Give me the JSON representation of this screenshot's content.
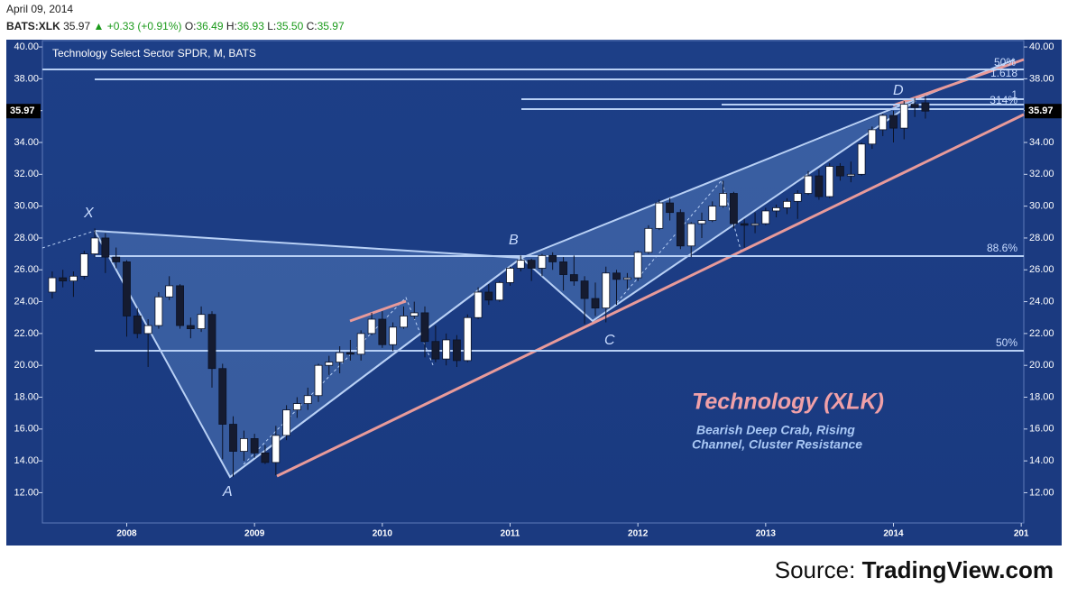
{
  "header": {
    "date": "April 09, 2014",
    "symbol": "BATS:XLK",
    "last": "35.97",
    "change": "+0.33 (+0.91%)",
    "ohlc": [
      {
        "key": "O:",
        "value": "36.49"
      },
      {
        "key": "H:",
        "value": "36.93"
      },
      {
        "key": "L:",
        "value": "35.50"
      },
      {
        "key": "C:",
        "value": "35.97"
      }
    ]
  },
  "source": {
    "prefix": "Source:",
    "name": "TradingView.com"
  },
  "chart_data": {
    "type": "candlestick",
    "title": "Technology Select Sector SPDR, M, BATS",
    "up_color": "#ffffff",
    "down_color": "#151b30",
    "wick_color": "#0b1226",
    "x": [
      2007.417,
      2007.5,
      2007.583,
      2007.667,
      2007.75,
      2007.833,
      2007.917,
      2008,
      2008.083,
      2008.167,
      2008.25,
      2008.333,
      2008.417,
      2008.5,
      2008.583,
      2008.667,
      2008.75,
      2008.833,
      2008.917,
      2009,
      2009.083,
      2009.167,
      2009.25,
      2009.333,
      2009.417,
      2009.5,
      2009.583,
      2009.667,
      2009.75,
      2009.833,
      2009.917,
      2010,
      2010.083,
      2010.167,
      2010.25,
      2010.333,
      2010.417,
      2010.5,
      2010.583,
      2010.667,
      2010.75,
      2010.833,
      2010.917,
      2011,
      2011.083,
      2011.167,
      2011.25,
      2011.333,
      2011.417,
      2011.5,
      2011.583,
      2011.667,
      2011.75,
      2011.833,
      2011.917,
      2012,
      2012.083,
      2012.167,
      2012.25,
      2012.333,
      2012.417,
      2012.5,
      2012.583,
      2012.667,
      2012.75,
      2012.833,
      2012.917,
      2013,
      2013.083,
      2013.167,
      2013.25,
      2013.333,
      2013.417,
      2013.5,
      2013.583,
      2013.667,
      2013.75,
      2013.833,
      2013.917,
      2014,
      2014.083,
      2014.167,
      2014.25
    ],
    "open": [
      24.6,
      25.5,
      25.3,
      25.6,
      27.0,
      28.0,
      26.8,
      26.5,
      23.1,
      22.0,
      22.5,
      24.3,
      25.0,
      22.5,
      22.3,
      23.2,
      19.8,
      16.3,
      14.6,
      15.4,
      14.5,
      13.9,
      15.6,
      17.2,
      17.6,
      18.1,
      20.0,
      20.2,
      20.8,
      20.7,
      22.0,
      22.9,
      21.3,
      22.4,
      23.1,
      23.3,
      21.5,
      20.4,
      21.6,
      20.3,
      23.0,
      24.6,
      24.1,
      25.2,
      26.1,
      26.6,
      26.1,
      26.9,
      26.5,
      25.7,
      25.3,
      24.2,
      23.6,
      25.8,
      25.4,
      25.5,
      27.1,
      28.6,
      30.2,
      29.6,
      27.5,
      28.9,
      29.1,
      30.0,
      30.8,
      28.9,
      28.8,
      28.9,
      29.7,
      29.9,
      30.3,
      30.8,
      31.9,
      30.6,
      32.5,
      31.9,
      32.0,
      33.9,
      34.8,
      35.7,
      34.9,
      36.4,
      36.49
    ],
    "high": [
      25.9,
      26.0,
      25.9,
      27.2,
      28.6,
      28.3,
      27.4,
      26.6,
      23.6,
      22.9,
      24.6,
      25.6,
      25.1,
      23.0,
      23.7,
      23.4,
      20.1,
      16.8,
      15.9,
      15.7,
      15.0,
      16.2,
      17.5,
      18.0,
      18.6,
      20.1,
      20.6,
      21.2,
      21.6,
      22.2,
      23.3,
      23.4,
      22.7,
      23.7,
      24.0,
      23.7,
      22.5,
      22.0,
      21.9,
      23.2,
      24.9,
      25.1,
      25.3,
      26.2,
      26.9,
      26.7,
      27.0,
      27.1,
      26.8,
      26.9,
      25.6,
      25.2,
      26.2,
      26.0,
      25.8,
      27.2,
      28.8,
      30.4,
      30.5,
      29.8,
      29.0,
      29.6,
      30.3,
      31.6,
      30.9,
      29.2,
      29.6,
      29.9,
      30.1,
      30.5,
      31.0,
      32.2,
      32.3,
      32.7,
      32.7,
      32.8,
      34.0,
      35.0,
      35.8,
      36.0,
      36.6,
      36.8,
      36.93
    ],
    "low": [
      24.2,
      24.9,
      24.3,
      25.4,
      26.8,
      25.8,
      26.1,
      21.8,
      21.7,
      19.9,
      22.3,
      24.1,
      22.3,
      21.7,
      22.1,
      18.6,
      14.1,
      13.0,
      14.0,
      14.2,
      13.8,
      13.1,
      15.3,
      16.7,
      17.2,
      17.7,
      19.4,
      19.5,
      20.3,
      20.3,
      21.9,
      21.1,
      20.9,
      22.3,
      22.9,
      20.5,
      20.2,
      20.0,
      19.9,
      20.2,
      22.9,
      23.8,
      24.0,
      25.0,
      25.9,
      25.3,
      25.6,
      26.0,
      24.7,
      25.0,
      22.6,
      23.1,
      22.7,
      23.8,
      24.8,
      25.3,
      27.0,
      28.5,
      29.1,
      27.3,
      26.8,
      28.0,
      29.0,
      29.9,
      28.6,
      27.4,
      28.3,
      28.8,
      29.3,
      29.5,
      29.2,
      30.7,
      30.4,
      30.5,
      31.6,
      31.5,
      31.9,
      33.6,
      34.4,
      34.0,
      34.2,
      35.6,
      35.5
    ],
    "close": [
      25.5,
      25.3,
      25.6,
      27.0,
      28.0,
      26.8,
      26.5,
      23.1,
      22.0,
      22.5,
      24.3,
      25.0,
      22.5,
      22.3,
      23.2,
      19.8,
      16.3,
      14.6,
      15.4,
      14.5,
      13.9,
      15.6,
      17.2,
      17.6,
      18.1,
      20.0,
      20.2,
      20.8,
      20.7,
      22.0,
      22.9,
      21.3,
      22.4,
      23.1,
      23.3,
      21.5,
      20.4,
      21.6,
      20.3,
      23.0,
      24.6,
      24.1,
      25.2,
      26.1,
      26.6,
      26.1,
      26.9,
      26.5,
      25.7,
      25.3,
      24.2,
      23.6,
      25.8,
      25.4,
      25.5,
      27.1,
      28.6,
      30.2,
      29.6,
      27.5,
      28.9,
      29.1,
      30.0,
      30.8,
      28.9,
      28.8,
      28.9,
      29.7,
      29.9,
      30.3,
      30.8,
      31.9,
      30.6,
      32.5,
      31.9,
      32.0,
      33.9,
      34.8,
      35.7,
      34.9,
      36.4,
      36.2,
      35.97
    ],
    "xlim": [
      2007.34,
      2015.02
    ],
    "xticks": [
      2008,
      2009,
      2010,
      2011,
      2012,
      2013,
      2014,
      {
        "value": 2015,
        "label": "201"
      }
    ],
    "ylim": [
      10.1,
      40.4
    ],
    "yticks": [
      {
        "value": 12,
        "label": "12.00"
      },
      {
        "value": 14,
        "label": "14.00"
      },
      {
        "value": 16,
        "label": "16.00"
      },
      {
        "value": 18,
        "label": "18.00"
      },
      {
        "value": 20,
        "label": "20.00"
      },
      {
        "value": 22,
        "label": "22.00"
      },
      {
        "value": 24,
        "label": "24.00"
      },
      {
        "value": 26,
        "label": "26.00"
      },
      {
        "value": 28,
        "label": "28.00"
      },
      {
        "value": 30,
        "label": "30.00"
      },
      {
        "value": 32,
        "label": "32.00"
      },
      {
        "value": 34,
        "label": "34.00"
      },
      {
        "value": 36,
        "label": "36.00"
      },
      {
        "value": 38,
        "label": "38.00"
      },
      {
        "value": 40,
        "label": "40.00"
      }
    ],
    "annotations": {
      "heading": "Technology (XLK)",
      "subtitle": [
        "Bearish Deep Crab, Rising",
        "Channel, Cluster Resistance"
      ],
      "points": [
        "X",
        "A",
        "B",
        "C",
        "D"
      ],
      "levels": [
        "50%",
        "1.618",
        "1",
        "314%",
        "88.6%",
        "50%"
      ]
    }
  }
}
